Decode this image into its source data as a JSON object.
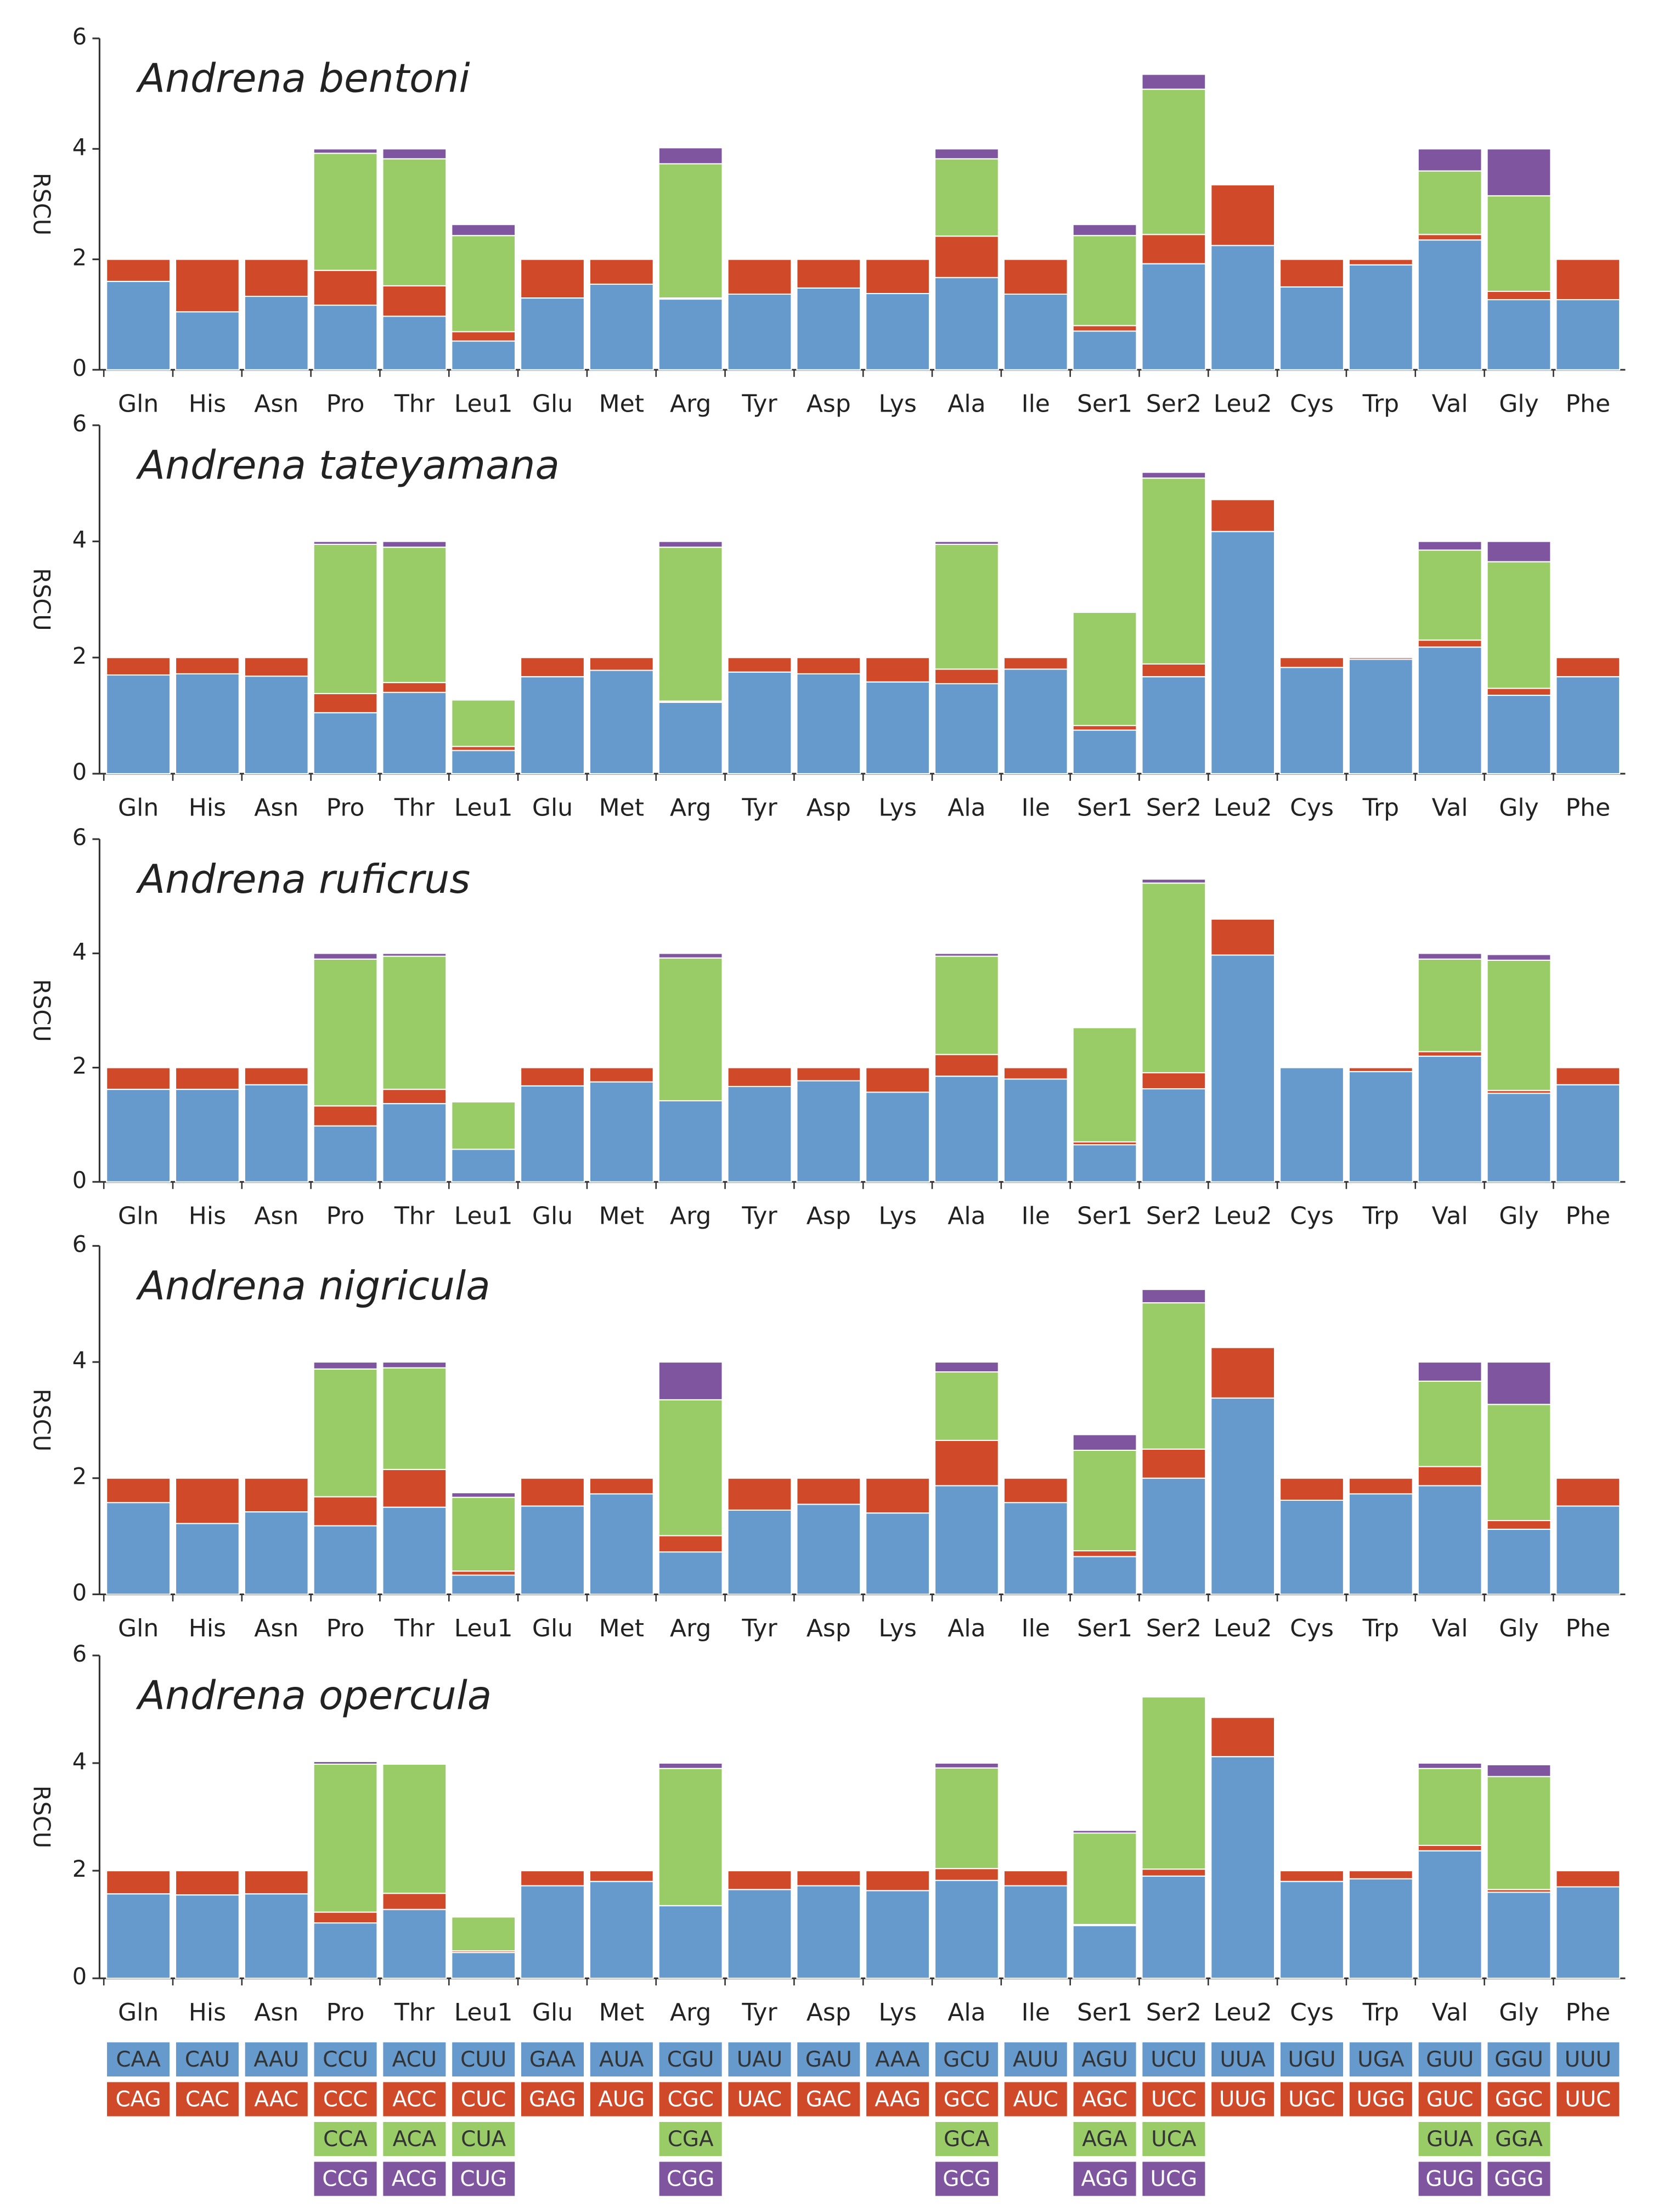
{
  "chart_data": [
    {
      "type": "bar",
      "stacked": true,
      "title": "Andrena bentoni",
      "y_label": "RSCU",
      "categories": [
        "Gln",
        "His",
        "Asn",
        "Pro",
        "Thr",
        "Leu1",
        "Glu",
        "Met",
        "Arg",
        "Tyr",
        "Asp",
        "Lys",
        "Ala",
        "Ile",
        "Ser1",
        "Ser2",
        "Leu2",
        "Cys",
        "Trp",
        "Val",
        "Gly",
        "Phe"
      ],
      "ylim": [
        0,
        6
      ],
      "yticks": [
        0,
        2,
        4,
        6
      ],
      "series": [
        {
          "color": "#6699cc",
          "values": [
            1.6,
            1.05,
            1.33,
            1.17,
            0.97,
            0.52,
            1.3,
            1.55,
            1.28,
            1.37,
            1.48,
            1.38,
            1.67,
            1.37,
            0.7,
            1.92,
            2.25,
            1.5,
            1.9,
            2.35,
            1.27,
            1.27
          ]
        },
        {
          "color": "#d04a2a",
          "values": [
            0.4,
            0.95,
            0.67,
            0.63,
            0.55,
            0.17,
            0.7,
            0.45,
            0.02,
            0.63,
            0.52,
            0.62,
            0.75,
            0.63,
            0.1,
            0.53,
            1.1,
            0.5,
            0.1,
            0.1,
            0.15,
            0.73
          ]
        },
        {
          "color": "#99cc66",
          "values": [
            null,
            null,
            null,
            2.12,
            2.3,
            1.74,
            null,
            null,
            2.43,
            null,
            null,
            null,
            1.4,
            null,
            1.63,
            2.63,
            null,
            null,
            null,
            1.15,
            1.73,
            null
          ]
        },
        {
          "color": "#7f55a0",
          "values": [
            null,
            null,
            null,
            0.08,
            0.18,
            0.2,
            null,
            null,
            0.29,
            null,
            null,
            null,
            0.18,
            null,
            0.2,
            0.27,
            null,
            null,
            null,
            0.4,
            0.85,
            null
          ]
        }
      ]
    },
    {
      "type": "bar",
      "stacked": true,
      "title": "Andrena tateyamana",
      "y_label": "RSCU",
      "categories": [
        "Gln",
        "His",
        "Asn",
        "Pro",
        "Thr",
        "Leu1",
        "Glu",
        "Met",
        "Arg",
        "Tyr",
        "Asp",
        "Lys",
        "Ala",
        "Ile",
        "Ser1",
        "Ser2",
        "Leu2",
        "Cys",
        "Trp",
        "Val",
        "Gly",
        "Phe"
      ],
      "ylim": [
        0,
        6
      ],
      "yticks": [
        0,
        2,
        4,
        6
      ],
      "series": [
        {
          "color": "#6699cc",
          "values": [
            1.7,
            1.72,
            1.68,
            1.05,
            1.4,
            0.4,
            1.67,
            1.78,
            1.23,
            1.75,
            1.72,
            1.58,
            1.55,
            1.8,
            0.75,
            1.67,
            4.17,
            1.83,
            1.97,
            2.18,
            1.35,
            1.67
          ]
        },
        {
          "color": "#d04a2a",
          "values": [
            0.3,
            0.28,
            0.32,
            0.33,
            0.17,
            0.07,
            0.33,
            0.22,
            0.02,
            0.25,
            0.28,
            0.42,
            0.25,
            0.2,
            0.08,
            0.22,
            0.55,
            0.17,
            0.03,
            0.12,
            0.12,
            0.33
          ]
        },
        {
          "color": "#99cc66",
          "values": [
            null,
            null,
            null,
            2.57,
            2.33,
            0.8,
            null,
            null,
            2.65,
            null,
            null,
            null,
            2.15,
            null,
            1.95,
            3.2,
            null,
            null,
            null,
            1.55,
            2.18,
            null
          ]
        },
        {
          "color": "#7f55a0",
          "values": [
            null,
            null,
            null,
            0.05,
            0.1,
            0.02,
            null,
            null,
            0.1,
            null,
            null,
            null,
            0.05,
            null,
            0.02,
            0.1,
            null,
            null,
            null,
            0.15,
            0.35,
            null
          ]
        }
      ]
    },
    {
      "type": "bar",
      "stacked": true,
      "title": "Andrena ruficrus",
      "y_label": "RSCU",
      "categories": [
        "Gln",
        "His",
        "Asn",
        "Pro",
        "Thr",
        "Leu1",
        "Glu",
        "Met",
        "Arg",
        "Tyr",
        "Asp",
        "Lys",
        "Ala",
        "Ile",
        "Ser1",
        "Ser2",
        "Leu2",
        "Cys",
        "Trp",
        "Val",
        "Gly",
        "Phe"
      ],
      "ylim": [
        0,
        6
      ],
      "yticks": [
        0,
        2,
        4,
        6
      ],
      "series": [
        {
          "color": "#6699cc",
          "values": [
            1.62,
            1.62,
            1.7,
            0.98,
            1.37,
            0.57,
            1.68,
            1.75,
            1.42,
            1.67,
            1.77,
            1.57,
            1.85,
            1.8,
            0.65,
            1.63,
            3.97,
            2.0,
            1.93,
            2.2,
            1.55,
            1.7
          ]
        },
        {
          "color": "#d04a2a",
          "values": [
            0.38,
            0.38,
            0.3,
            0.35,
            0.25,
            0,
            0.32,
            0.25,
            0,
            0.33,
            0.23,
            0.43,
            0.38,
            0.2,
            0.05,
            0.28,
            0.63,
            0,
            0.07,
            0.08,
            0.05,
            0.3
          ]
        },
        {
          "color": "#99cc66",
          "values": [
            null,
            null,
            null,
            2.57,
            2.33,
            0.83,
            null,
            null,
            2.5,
            null,
            null,
            null,
            1.72,
            null,
            2.0,
            3.32,
            null,
            null,
            null,
            1.62,
            2.28,
            null
          ]
        },
        {
          "color": "#7f55a0",
          "values": [
            null,
            null,
            null,
            0.1,
            0.05,
            0,
            null,
            null,
            0.08,
            null,
            null,
            null,
            0.05,
            null,
            0,
            0.07,
            null,
            null,
            null,
            0.1,
            0.1,
            null
          ]
        }
      ]
    },
    {
      "type": "bar",
      "stacked": true,
      "title": "Andrena nigricula",
      "y_label": "RSCU",
      "categories": [
        "Gln",
        "His",
        "Asn",
        "Pro",
        "Thr",
        "Leu1",
        "Glu",
        "Met",
        "Arg",
        "Tyr",
        "Asp",
        "Lys",
        "Ala",
        "Ile",
        "Ser1",
        "Ser2",
        "Leu2",
        "Cys",
        "Trp",
        "Val",
        "Gly",
        "Phe"
      ],
      "ylim": [
        0,
        6
      ],
      "yticks": [
        0,
        2,
        4,
        6
      ],
      "series": [
        {
          "color": "#6699cc",
          "values": [
            1.58,
            1.22,
            1.42,
            1.18,
            1.5,
            0.33,
            1.52,
            1.73,
            0.73,
            1.45,
            1.55,
            1.4,
            1.87,
            1.58,
            0.65,
            2.0,
            3.38,
            1.62,
            1.73,
            1.87,
            1.12,
            1.52
          ]
        },
        {
          "color": "#d04a2a",
          "values": [
            0.42,
            0.78,
            0.58,
            0.5,
            0.65,
            0.07,
            0.48,
            0.27,
            0.28,
            0.55,
            0.45,
            0.6,
            0.78,
            0.42,
            0.1,
            0.5,
            0.87,
            0.38,
            0.27,
            0.33,
            0.15,
            0.48
          ]
        },
        {
          "color": "#99cc66",
          "values": [
            null,
            null,
            null,
            2.2,
            1.75,
            1.27,
            null,
            null,
            2.34,
            null,
            null,
            null,
            1.18,
            null,
            1.73,
            2.52,
            null,
            null,
            null,
            1.47,
            2.0,
            null
          ]
        },
        {
          "color": "#7f55a0",
          "values": [
            null,
            null,
            null,
            0.12,
            0.1,
            0.08,
            null,
            null,
            0.65,
            null,
            null,
            null,
            0.17,
            null,
            0.27,
            0.23,
            null,
            null,
            null,
            0.33,
            0.73,
            null
          ]
        }
      ]
    },
    {
      "type": "bar",
      "stacked": true,
      "title": "Andrena opercula",
      "y_label": "RSCU",
      "categories": [
        "Gln",
        "His",
        "Asn",
        "Pro",
        "Thr",
        "Leu1",
        "Glu",
        "Met",
        "Arg",
        "Tyr",
        "Asp",
        "Lys",
        "Ala",
        "Ile",
        "Ser1",
        "Ser2",
        "Leu2",
        "Cys",
        "Trp",
        "Val",
        "Gly",
        "Phe"
      ],
      "ylim": [
        0,
        6
      ],
      "yticks": [
        0,
        2,
        4,
        6
      ],
      "series": [
        {
          "color": "#6699cc",
          "values": [
            1.57,
            1.55,
            1.57,
            1.03,
            1.28,
            0.48,
            1.72,
            1.8,
            1.35,
            1.65,
            1.72,
            1.63,
            1.82,
            1.72,
            0.98,
            1.9,
            4.12,
            1.8,
            1.85,
            2.37,
            1.6,
            1.7
          ]
        },
        {
          "color": "#d04a2a",
          "values": [
            0.43,
            0.45,
            0.43,
            0.2,
            0.3,
            0.03,
            0.28,
            0.2,
            0,
            0.35,
            0.28,
            0.37,
            0.22,
            0.28,
            0.02,
            0.13,
            0.73,
            0.2,
            0.15,
            0.1,
            0.05,
            0.3
          ]
        },
        {
          "color": "#99cc66",
          "values": [
            null,
            null,
            null,
            2.75,
            2.4,
            0.63,
            null,
            null,
            2.55,
            null,
            null,
            null,
            1.87,
            null,
            1.7,
            3.2,
            null,
            null,
            null,
            1.43,
            2.1,
            null
          ]
        },
        {
          "color": "#7f55a0",
          "values": [
            null,
            null,
            null,
            0.05,
            0.02,
            0,
            null,
            null,
            0.1,
            null,
            null,
            null,
            0.09,
            null,
            0.05,
            0,
            null,
            null,
            null,
            0.1,
            0.22,
            null
          ]
        }
      ]
    }
  ],
  "codon_table": [
    [
      "CAA",
      "CAG"
    ],
    [
      "CAU",
      "CAC"
    ],
    [
      "AAU",
      "AAC"
    ],
    [
      "CCU",
      "CCC",
      "CCA",
      "CCG"
    ],
    [
      "ACU",
      "ACC",
      "ACA",
      "ACG"
    ],
    [
      "CUU",
      "CUC",
      "CUA",
      "CUG"
    ],
    [
      "GAA",
      "GAG"
    ],
    [
      "AUA",
      "AUG"
    ],
    [
      "CGU",
      "CGC",
      "CGA",
      "CGG"
    ],
    [
      "UAU",
      "UAC"
    ],
    [
      "GAU",
      "GAC"
    ],
    [
      "AAA",
      "AAG"
    ],
    [
      "GCU",
      "GCC",
      "GCA",
      "GCG"
    ],
    [
      "AUU",
      "AUC"
    ],
    [
      "AGU",
      "AGC",
      "AGA",
      "AGG"
    ],
    [
      "UCU",
      "UCC",
      "UCA",
      "UCG"
    ],
    [
      "UUA",
      "UUG"
    ],
    [
      "UGU",
      "UGC"
    ],
    [
      "UGA",
      "UGG"
    ],
    [
      "GUU",
      "GUC",
      "GUA",
      "GUG"
    ],
    [
      "GGU",
      "GGC",
      "GGA",
      "GGG"
    ],
    [
      "UUU",
      "UUC"
    ]
  ]
}
